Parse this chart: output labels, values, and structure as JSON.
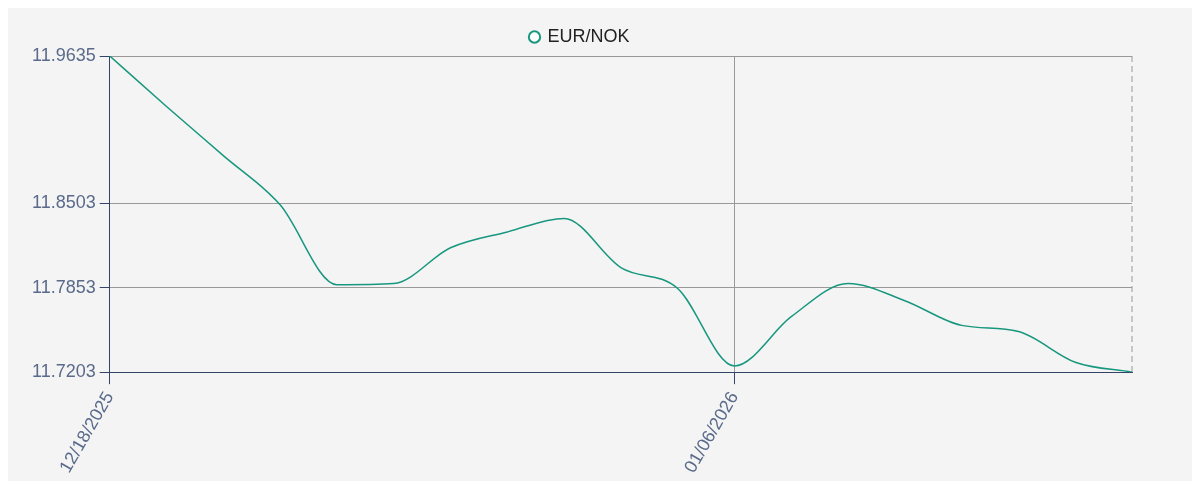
{
  "chart_data": {
    "type": "line",
    "categories": [
      "12/18/2025",
      null,
      null,
      null,
      null,
      null,
      null,
      null,
      null,
      null,
      null,
      "01/06/2026",
      null,
      null,
      null,
      null,
      null,
      null,
      null
    ],
    "series": [
      {
        "name": "EUR/NOK",
        "color": "#17977e",
        "values": [
          11.9635,
          11.9247,
          11.8869,
          11.849,
          11.7876,
          11.7885,
          11.816,
          11.8282,
          11.8386,
          11.8008,
          11.7847,
          11.7251,
          11.763,
          11.7885,
          11.7753,
          11.7563,
          11.7516,
          11.728,
          11.7203
        ]
      }
    ],
    "ylim": [
      11.7203,
      11.9635
    ],
    "yticks": [
      11.7203,
      11.7853,
      11.8503,
      11.9635
    ],
    "grid": true,
    "legend": "top",
    "marker": "none",
    "line_style": "solid"
  }
}
